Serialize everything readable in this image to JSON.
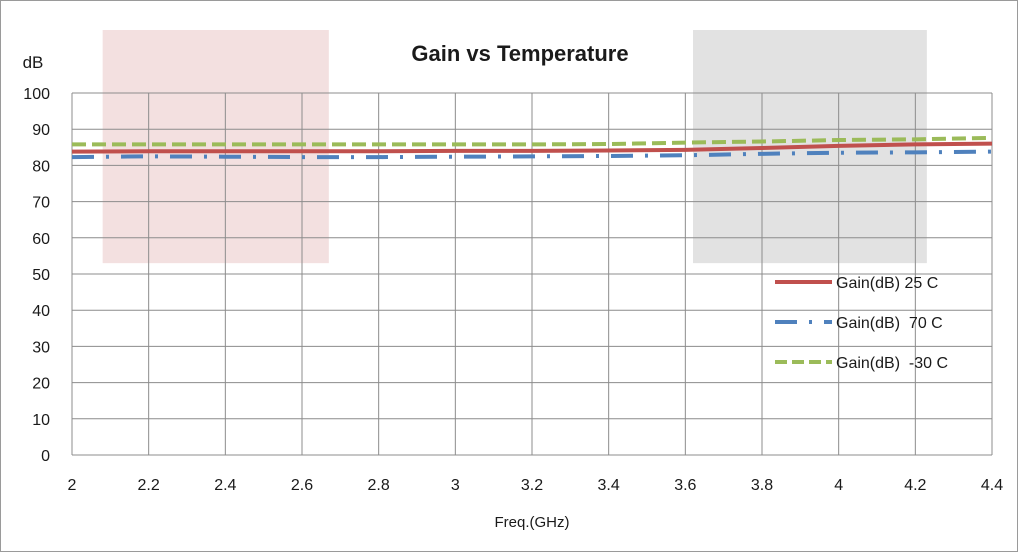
{
  "chart_data": {
    "type": "line",
    "title": "Gain vs Temperature",
    "xlabel": "Freq.(GHz)",
    "ylabel": "dB",
    "xlim": [
      2,
      4.4
    ],
    "ylim": [
      0,
      100
    ],
    "x_ticks": [
      2,
      2.2,
      2.4,
      2.6,
      2.8,
      3,
      3.2,
      3.4,
      3.6,
      3.8,
      4,
      4.2,
      4.4
    ],
    "y_ticks": [
      0,
      10,
      20,
      30,
      40,
      50,
      60,
      70,
      80,
      90,
      100
    ],
    "grid": true,
    "legend_position": "right",
    "bands": [
      {
        "x_range": [
          2.08,
          2.67
        ],
        "y_range": [
          53,
          100
        ],
        "color": "#f3e0e0"
      },
      {
        "x_range": [
          3.62,
          4.23
        ],
        "y_range": [
          53,
          100
        ],
        "color": "#e2e2e2"
      }
    ],
    "series": [
      {
        "name": "Gain(dB) 25 C",
        "color": "#c0504d",
        "style": "solid",
        "x": [
          2.0,
          2.2,
          2.4,
          2.6,
          2.8,
          3.0,
          3.2,
          3.4,
          3.6,
          3.8,
          4.0,
          4.2,
          4.4
        ],
        "y": [
          83.8,
          83.9,
          83.9,
          83.9,
          83.9,
          84.0,
          84.0,
          84.1,
          84.3,
          84.8,
          85.4,
          85.8,
          86.0
        ]
      },
      {
        "name": "Gain(dB)  70 C",
        "color": "#4f81bd",
        "style": "dashdot",
        "x": [
          2.0,
          2.2,
          2.4,
          2.6,
          2.8,
          3.0,
          3.2,
          3.4,
          3.6,
          3.8,
          4.0,
          4.2,
          4.4
        ],
        "y": [
          82.3,
          82.5,
          82.4,
          82.3,
          82.3,
          82.4,
          82.5,
          82.6,
          82.8,
          83.2,
          83.5,
          83.6,
          83.8
        ]
      },
      {
        "name": "Gain(dB)  -30 C",
        "color": "#9bbb59",
        "style": "dashed",
        "x": [
          2.0,
          2.2,
          2.4,
          2.6,
          2.8,
          3.0,
          3.2,
          3.4,
          3.6,
          3.8,
          4.0,
          4.2,
          4.4
        ],
        "y": [
          85.8,
          85.8,
          85.8,
          85.8,
          85.8,
          85.8,
          85.8,
          85.9,
          86.3,
          86.6,
          87.0,
          87.2,
          87.6
        ]
      }
    ]
  }
}
